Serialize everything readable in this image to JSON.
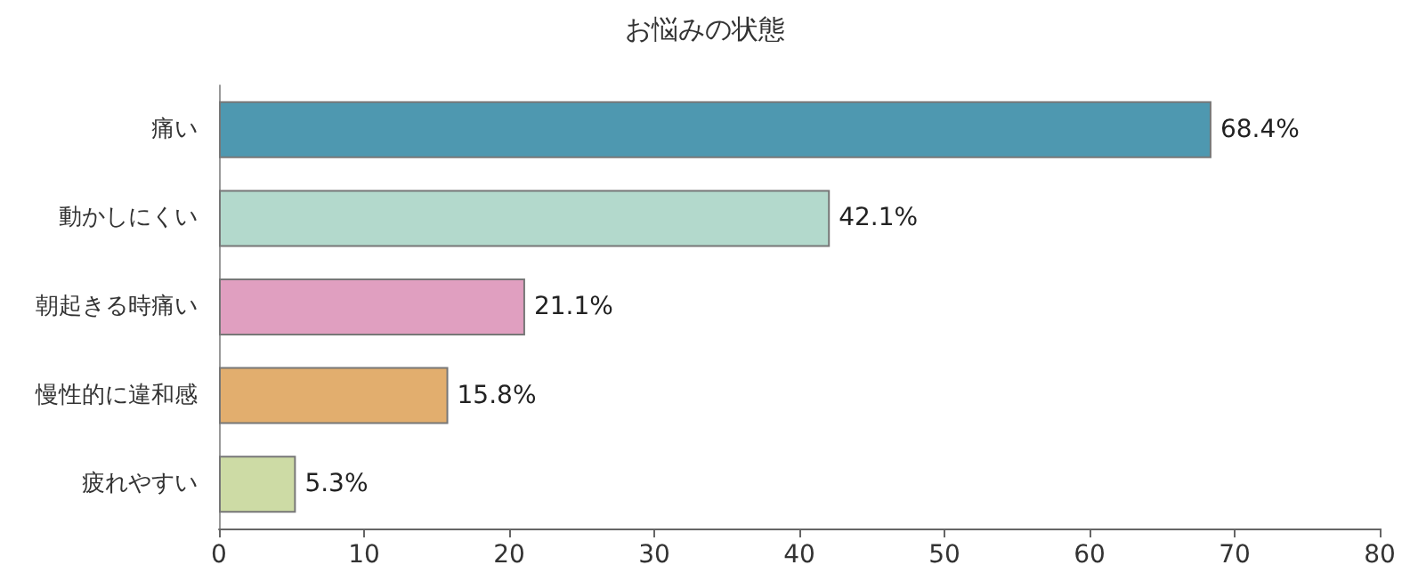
{
  "chart_data": {
    "type": "bar",
    "orientation": "horizontal",
    "title": "お悩みの状態",
    "categories": [
      "痛い",
      "動かしにくい",
      "朝起きる時痛い",
      "慢性的に違和感",
      "疲れやすい"
    ],
    "values": [
      68.4,
      42.1,
      21.1,
      15.8,
      5.3
    ],
    "colors": [
      "#4e98b0",
      "#b3d9cc",
      "#e09fc0",
      "#e2ae6e",
      "#cddba5"
    ],
    "xlim": [
      0,
      80
    ],
    "xticks": [
      0,
      10,
      20,
      30,
      40,
      50,
      60,
      70,
      80
    ],
    "value_labels": [
      "68.4%",
      "42.1%",
      "21.1%",
      "15.8%",
      "5.3%"
    ],
    "grid": false
  }
}
